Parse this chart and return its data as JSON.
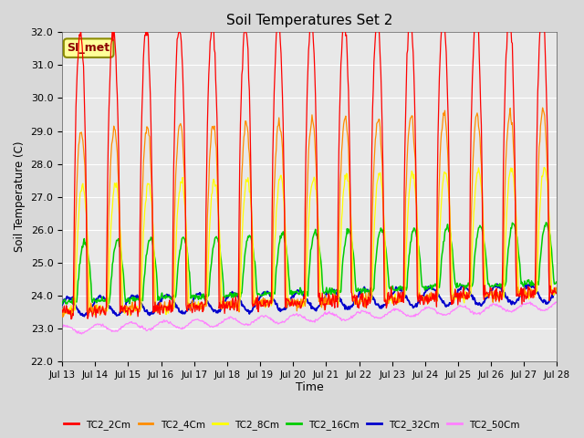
{
  "title": "Soil Temperatures Set 2",
  "ylabel": "Soil Temperature (C)",
  "xlabel": "Time",
  "annotation": "SI_met",
  "ylim": [
    22.0,
    32.0
  ],
  "yticks": [
    22.0,
    23.0,
    24.0,
    25.0,
    26.0,
    27.0,
    28.0,
    29.0,
    30.0,
    31.0,
    32.0
  ],
  "xtick_labels": [
    "Jul 13",
    "Jul 14",
    "Jul 15",
    "Jul 16",
    "Jul 17",
    "Jul 18",
    "Jul 19",
    "Jul 20",
    "Jul 21",
    "Jul 22",
    "Jul 23",
    "Jul 24",
    "Jul 25",
    "Jul 26",
    "Jul 27",
    "Jul 28"
  ],
  "series_colors": [
    "#FF0000",
    "#FF8C00",
    "#FFFF00",
    "#00CC00",
    "#0000CC",
    "#FF80FF"
  ],
  "series_names": [
    "TC2_2Cm",
    "TC2_4Cm",
    "TC2_8Cm",
    "TC2_16Cm",
    "TC2_32Cm",
    "TC2_50Cm"
  ],
  "fig_facecolor": "#D8D8D8",
  "ax_facecolor": "#E8E8E8",
  "n_days": 15,
  "n_points_per_day": 48
}
